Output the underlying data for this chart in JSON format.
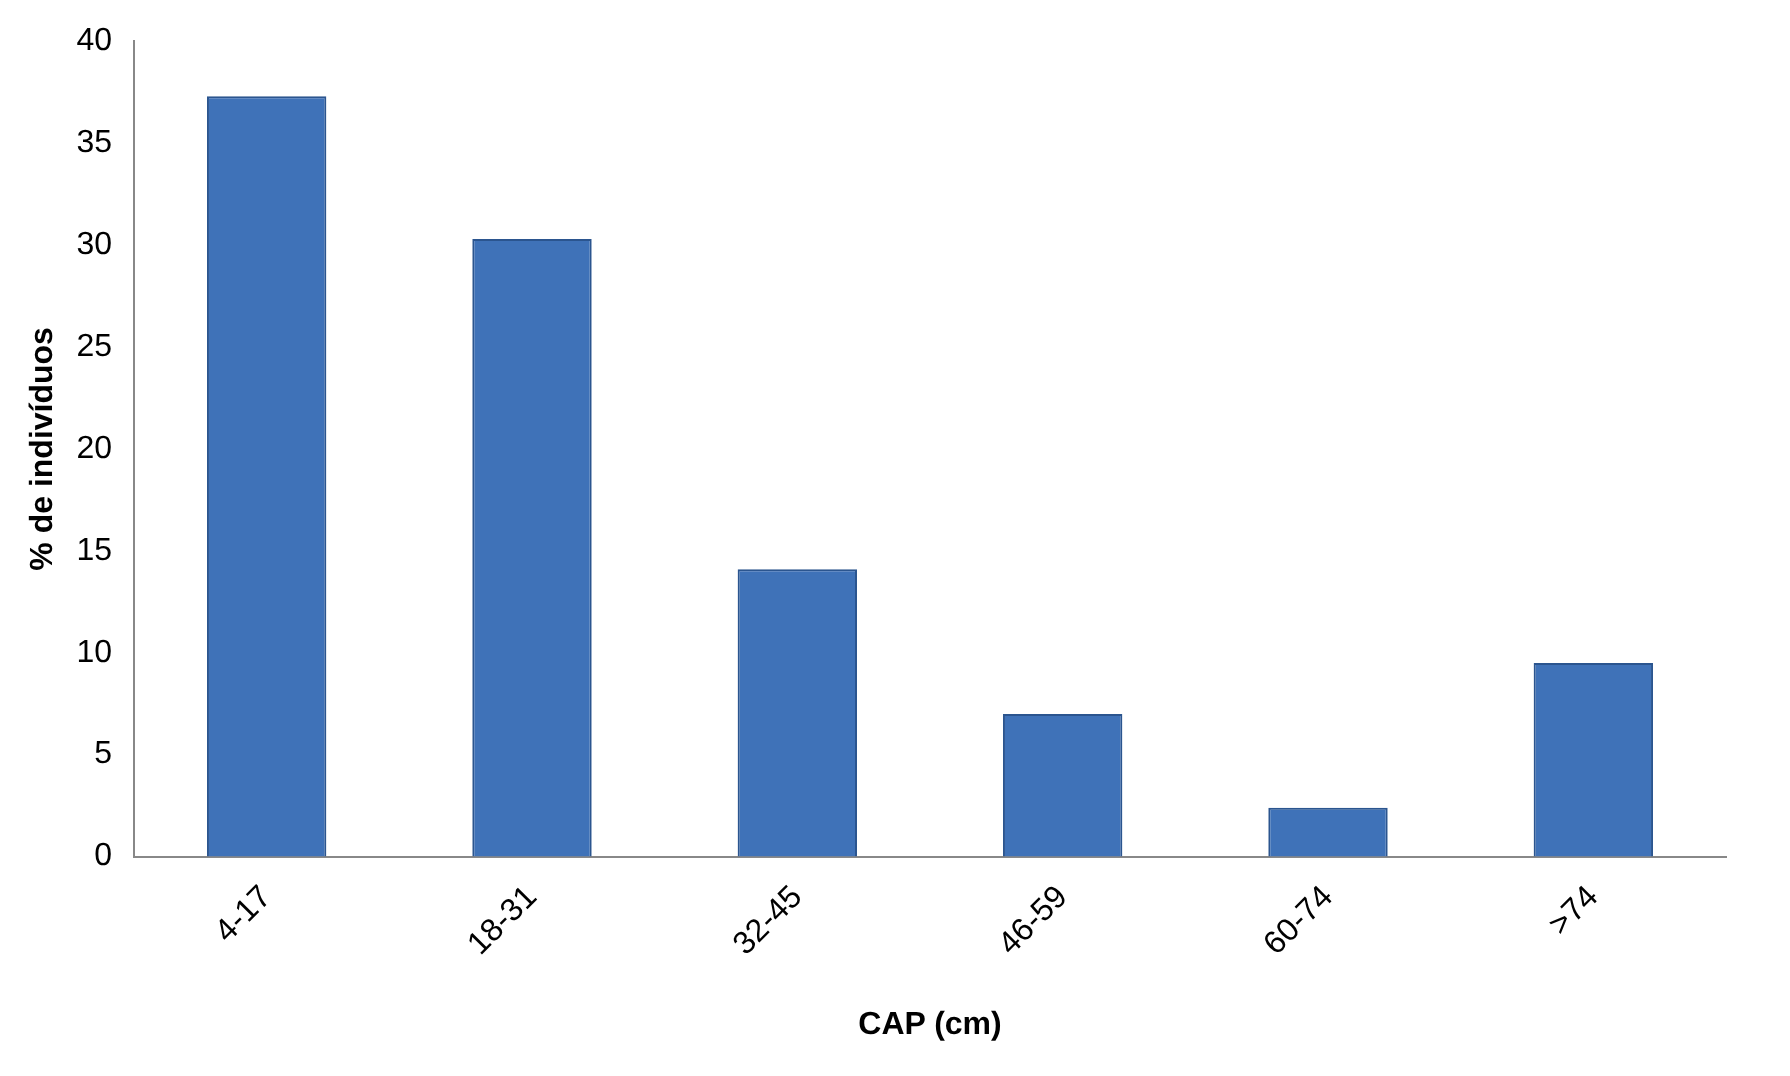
{
  "chart_data": {
    "type": "bar",
    "xlabel": "CAP (cm)",
    "ylabel": "% de indivíduos",
    "categories": [
      "4-17",
      "18-31",
      "32-45",
      "46-59",
      "60-74",
      ">74"
    ],
    "values": [
      37.3,
      30.3,
      14.1,
      7.0,
      2.4,
      9.5
    ],
    "color": "#3f72b8",
    "ylim": [
      0,
      40
    ],
    "yticks": [
      0,
      5,
      10,
      15,
      20,
      25,
      30,
      35,
      40
    ],
    "grid": false,
    "legend": false
  }
}
